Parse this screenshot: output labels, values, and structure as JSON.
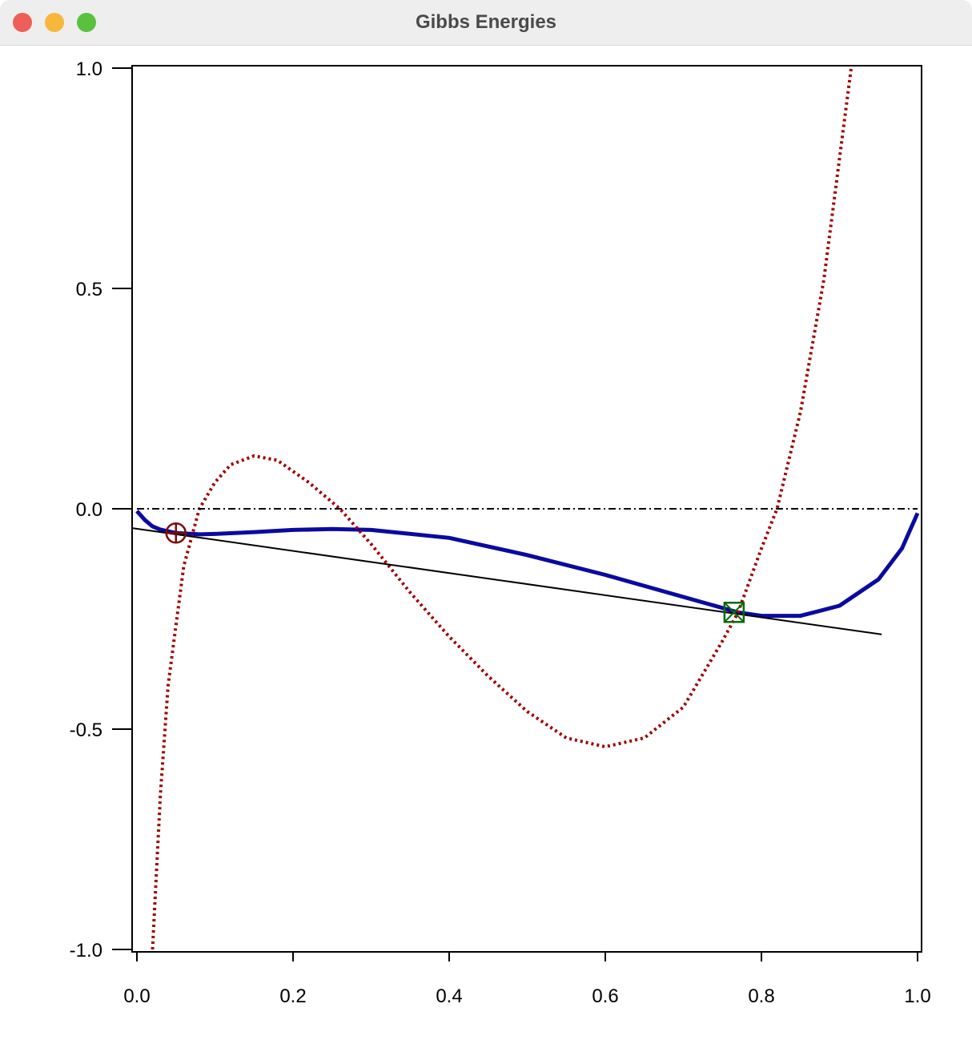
{
  "window": {
    "title": "Gibbs Energies"
  },
  "colors": {
    "close": "#ee5f57",
    "minimize": "#f6b73c",
    "zoom": "#5ac13f",
    "solid_curve": "#0a0aa0",
    "dotted_curve": "#a00000",
    "circle_marker": "#7a0a0a",
    "square_marker": "#0a6a0a"
  },
  "chart_data": {
    "type": "line",
    "xlim": [
      0.0,
      1.0
    ],
    "ylim": [
      -1.0,
      1.0
    ],
    "xticks": [
      "0.0",
      "0.2",
      "0.4",
      "0.6",
      "0.8",
      "1.0"
    ],
    "yticks": [
      "1.0",
      "0.5",
      "0.0",
      "-0.5",
      "-1.0"
    ],
    "grid": false,
    "series": [
      {
        "style": "solid-thick",
        "x": [
          0.0,
          0.01,
          0.02,
          0.03,
          0.05,
          0.08,
          0.1,
          0.15,
          0.2,
          0.25,
          0.3,
          0.4,
          0.5,
          0.6,
          0.7,
          0.77,
          0.8,
          0.85,
          0.9,
          0.95,
          0.98,
          1.0
        ],
        "y": [
          -0.005,
          -0.025,
          -0.04,
          -0.047,
          -0.055,
          -0.058,
          -0.057,
          -0.053,
          -0.048,
          -0.046,
          -0.048,
          -0.066,
          -0.105,
          -0.15,
          -0.2,
          -0.235,
          -0.243,
          -0.243,
          -0.22,
          -0.16,
          -0.09,
          -0.01
        ]
      },
      {
        "style": "dotted",
        "x": [
          0.02,
          0.03,
          0.04,
          0.06,
          0.08,
          0.1,
          0.12,
          0.15,
          0.18,
          0.22,
          0.26,
          0.3,
          0.35,
          0.4,
          0.45,
          0.5,
          0.55,
          0.6,
          0.65,
          0.7,
          0.75,
          0.77,
          0.8,
          0.82,
          0.85,
          0.88,
          0.915
        ],
        "y": [
          -1.0,
          -0.65,
          -0.4,
          -0.13,
          0.0,
          0.06,
          0.1,
          0.12,
          0.11,
          0.06,
          0.0,
          -0.08,
          -0.19,
          -0.29,
          -0.38,
          -0.46,
          -0.52,
          -0.54,
          -0.52,
          -0.45,
          -0.3,
          -0.235,
          -0.09,
          0.0,
          0.22,
          0.52,
          1.0
        ]
      },
      {
        "style": "tangent-line",
        "x": [
          -0.021,
          0.954
        ],
        "y": [
          -0.04,
          -0.285
        ]
      },
      {
        "style": "dash-dot",
        "x": [
          0.0,
          1.0
        ],
        "y": [
          0.0,
          0.0
        ]
      }
    ],
    "markers": [
      {
        "shape": "circle-cross",
        "x": 0.05,
        "y": -0.055
      },
      {
        "shape": "square-x",
        "x": 0.765,
        "y": -0.235
      }
    ]
  }
}
